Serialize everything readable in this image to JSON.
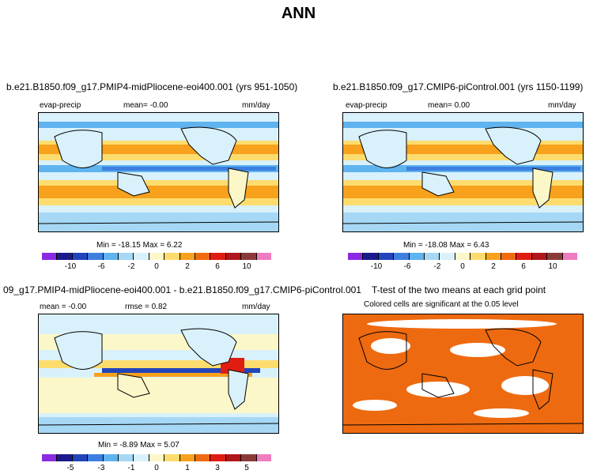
{
  "figure": {
    "title": "ANN"
  },
  "panels": [
    {
      "run_label": "b.e21.B1850.f09_g17.PMIP4-midPliocene-eoi400.001 (yrs 951-1050)",
      "variable": "evap-precip",
      "mean_text": "mean=   -0.00",
      "units": "mm/day",
      "min_max_text": "Min = -18.15 Max =    6.22",
      "colorbar_ticks": [
        "-10",
        "-6",
        "-2",
        "0",
        "2",
        "6",
        "10"
      ]
    },
    {
      "run_label": "b.e21.B1850.f09_g17.CMIP6-piControl.001 (yrs 1150-1199)",
      "variable": "evap-precip",
      "mean_text": "mean=    0.00",
      "units": "mm/day",
      "min_max_text": "Min = -18.08 Max =    6.43",
      "colorbar_ticks": [
        "-10",
        "-6",
        "-2",
        "0",
        "2",
        "6",
        "10"
      ]
    },
    {
      "run_label": "09_g17.PMIP4-midPliocene-eoi400.001 - b.e21.B1850.f09_g17.CMIP6-piControl.001",
      "mean_text": "mean =   -0.00",
      "rmse_text": "rmse =    0.82",
      "units": "mm/day",
      "min_max_text": "Min = -8.89 Max =   5.07",
      "colorbar_ticks": [
        "-5",
        "-3",
        "-1",
        "0",
        "1",
        "3",
        "5"
      ]
    },
    {
      "run_label": "T-test of the two means at each grid point",
      "note": "Colored cells are significant at the 0.05 level"
    }
  ],
  "colors": {
    "scale": [
      "#8a2be2",
      "#1a1a8c",
      "#2244bb",
      "#3d7fe0",
      "#5fb3ef",
      "#a6d8f5",
      "#d9f1fb",
      "#fbf7c8",
      "#fddc6e",
      "#f7a11c",
      "#f06a10",
      "#e01d12",
      "#b0161a",
      "#8b3a3a",
      "#f07cc0"
    ],
    "ttest_fill": "#ee6a10"
  }
}
